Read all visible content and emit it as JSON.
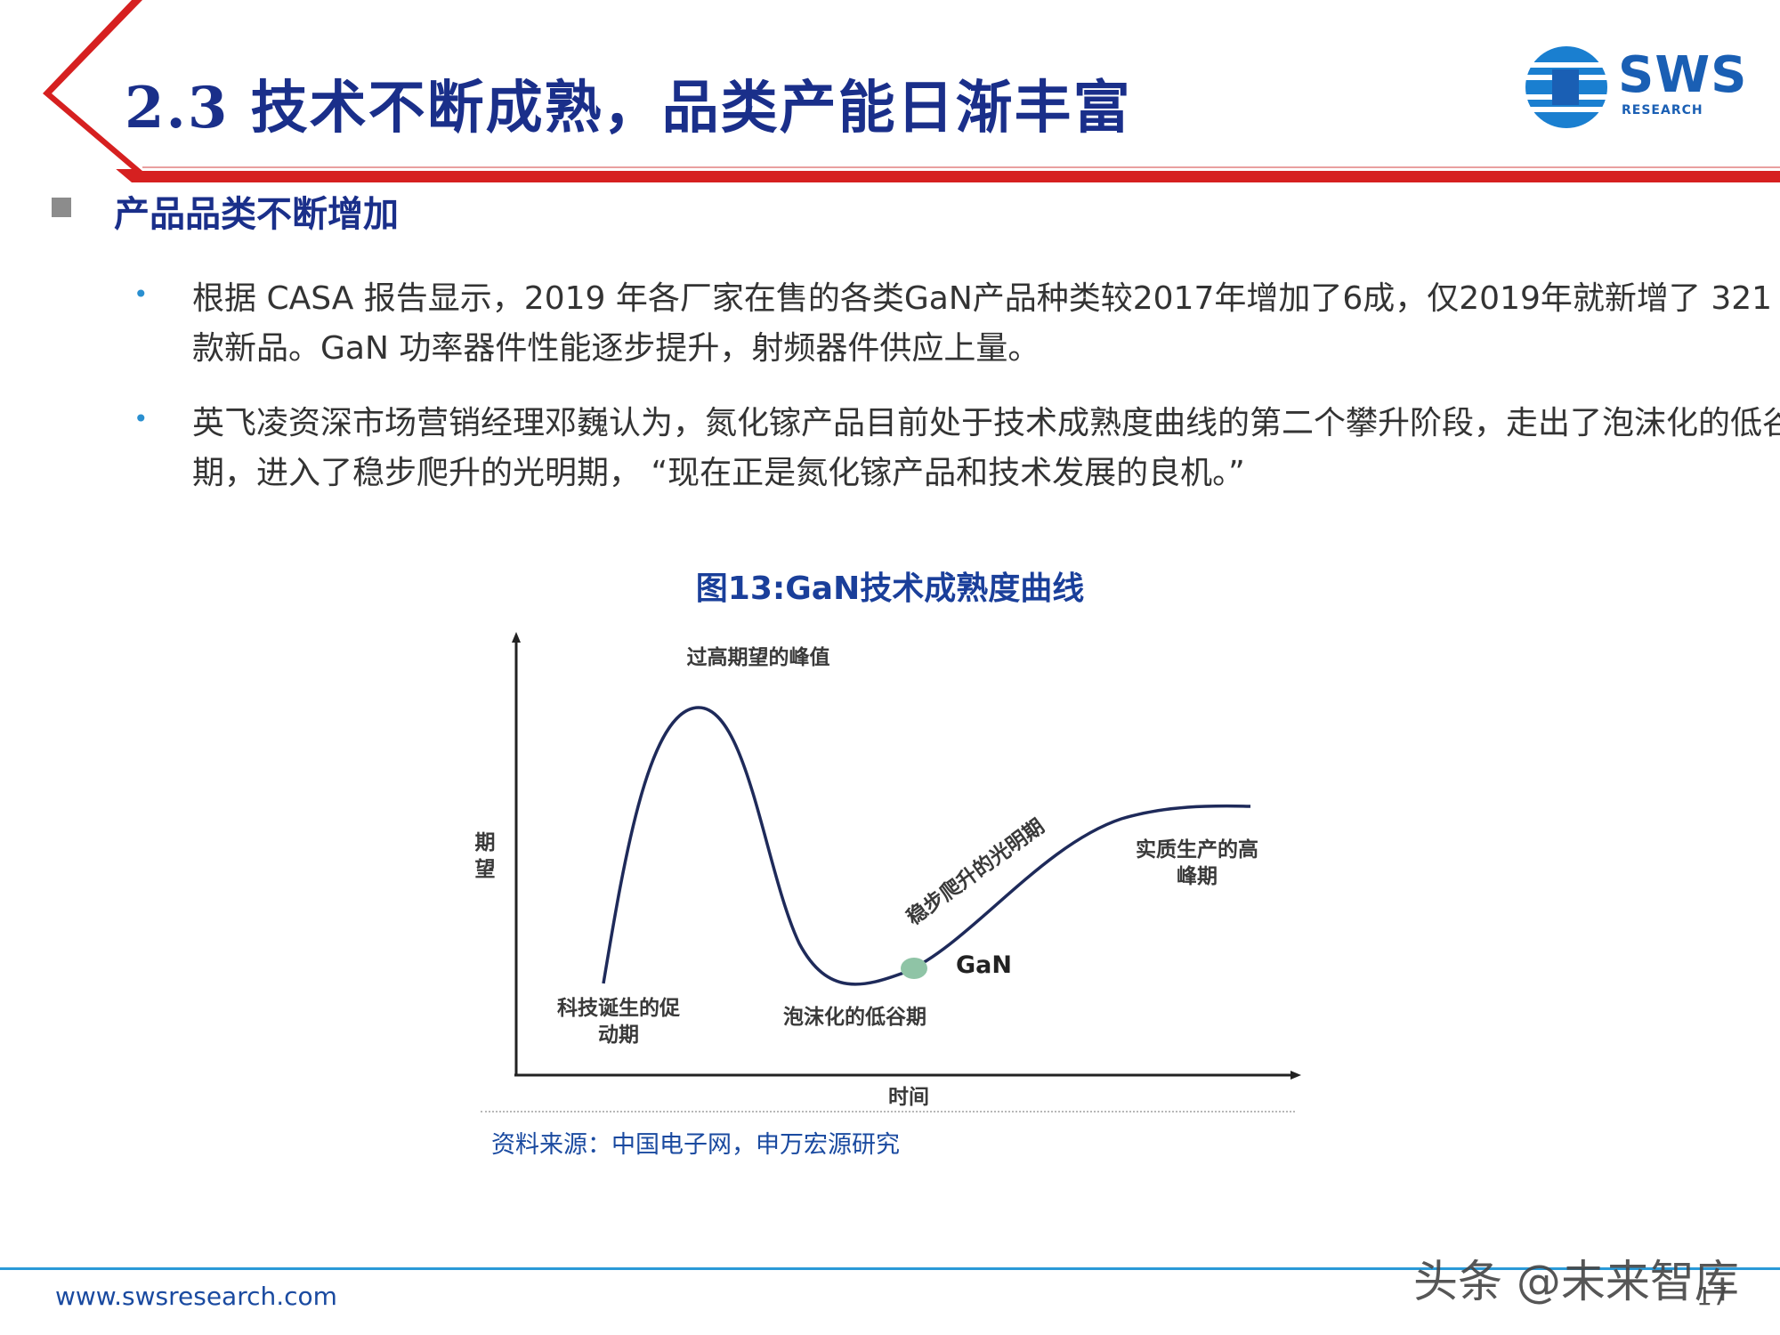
{
  "header": {
    "title": "2.3 技术不断成熟，品类产能日渐丰富",
    "logo_text": "SWS",
    "logo_subtext": "RESEARCH",
    "accent_red": "#d62020",
    "title_color": "#1a2f8a"
  },
  "section": {
    "title": "产品品类不断增加"
  },
  "bullets": [
    "根据 CASA 报告显示，2019 年各厂家在售的各类GaN产品种类较2017年增加了6成，仅2019年就新增了 321 款新品。GaN 功率器件性能逐步提升，射频器件供应上量。",
    "英飞凌资深市场营销经理邓巍认为，氮化镓产品目前处于技术成熟度曲线的第二个攀升阶段，走出了泡沫化的低谷期，进入了稳步爬升的光明期， “现在正是氮化镓产品和技术发展的良机。”"
  ],
  "figure": {
    "title": "图13:GaN技术成熟度曲线",
    "y_axis_label": "期望",
    "x_axis_label": "时间",
    "annotations": {
      "peak": "过高期望的峰值",
      "trigger": "科技诞生的促动期",
      "trough": "泡沫化的低谷期",
      "slope": "稳步爬升的光明期",
      "plateau": "实质生产的高峰期",
      "marker": "GaN"
    },
    "marker_color": "#8fc4a6",
    "curve_color": "#1e2a5a",
    "source": "资料来源：中国电子网，申万宏源研究"
  },
  "footer": {
    "url": "www.swsresearch.com",
    "page": "17",
    "watermark": "头条 @未来智库"
  }
}
